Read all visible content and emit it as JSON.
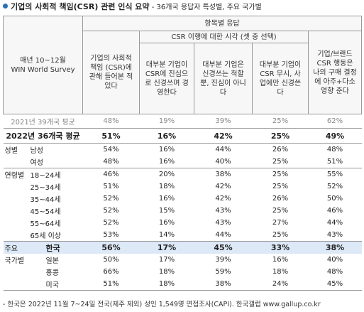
{
  "title": "기업의 사회적 책임(CSR) 관련 인식 요약",
  "subtitle": " - 36개국 응답자 특성별, 주요 국가별",
  "header": {
    "corner_line1": "매년 10~12월",
    "corner_line2": "WIN World Survey",
    "group_label": "항목별 응답",
    "sub_group_label": "CSR 이행에 대한 시각 (셋 중 선택)",
    "col1": "기업의 사회적 책임 (CSR)에 관해 들어본 적 있다",
    "col2": "대부분 기업이 CSR에 진심으로 신경쓰며 경영한다",
    "col3": "대부분 기업은 신경쓰는 척할 뿐, 진심이 아니다",
    "col4": "대부분 기업이 CSR 무시, 사업에만 신경쓴다",
    "col5": "기업/브랜드 CSR 행동은 나의 구매 결정에 아주+다소 영향 준다"
  },
  "prev_row": {
    "label": "2021년 39개국 평균",
    "values": [
      "48%",
      "19%",
      "39%",
      "25%",
      "62%"
    ]
  },
  "total_row": {
    "label": "2022년 36개국 평균",
    "values": [
      "51%",
      "16%",
      "42%",
      "25%",
      "49%"
    ]
  },
  "gender": {
    "group": "성별",
    "rows": [
      {
        "label": "남성",
        "values": [
          "54%",
          "16%",
          "44%",
          "26%",
          "48%"
        ]
      },
      {
        "label": "여성",
        "values": [
          "48%",
          "16%",
          "40%",
          "25%",
          "51%"
        ]
      }
    ]
  },
  "age": {
    "group": "연령별",
    "rows": [
      {
        "label": "18~24세",
        "values": [
          "46%",
          "20%",
          "38%",
          "25%",
          "55%"
        ]
      },
      {
        "label": "25~34세",
        "values": [
          "51%",
          "18%",
          "42%",
          "25%",
          "52%"
        ]
      },
      {
        "label": "35~44세",
        "values": [
          "52%",
          "16%",
          "42%",
          "26%",
          "50%"
        ]
      },
      {
        "label": "45~54세",
        "values": [
          "52%",
          "15%",
          "43%",
          "25%",
          "46%"
        ]
      },
      {
        "label": "55~64세",
        "values": [
          "52%",
          "16%",
          "43%",
          "27%",
          "44%"
        ]
      },
      {
        "label": "65세 이상",
        "values": [
          "53%",
          "14%",
          "44%",
          "25%",
          "43%"
        ]
      }
    ]
  },
  "country": {
    "group_line1": "주요",
    "group_line2": "국가별",
    "rows": [
      {
        "label": "한국",
        "values": [
          "56%",
          "17%",
          "45%",
          "33%",
          "38%"
        ]
      },
      {
        "label": "일본",
        "values": [
          "50%",
          "17%",
          "39%",
          "16%",
          "40%"
        ]
      },
      {
        "label": "홍콩",
        "values": [
          "66%",
          "18%",
          "59%",
          "18%",
          "48%"
        ]
      },
      {
        "label": "미국",
        "values": [
          "51%",
          "18%",
          "38%",
          "24%",
          "45%"
        ]
      }
    ]
  },
  "footer": "- 한국은 2022년 11월 7~24일 전국(제주 제외) 성인 1,549명 면접조사(CAPI). 한국갤럽 www.gallup.co.kr",
  "colors": {
    "accent": "#2a6ebb",
    "highlight": "#dde9f7"
  }
}
